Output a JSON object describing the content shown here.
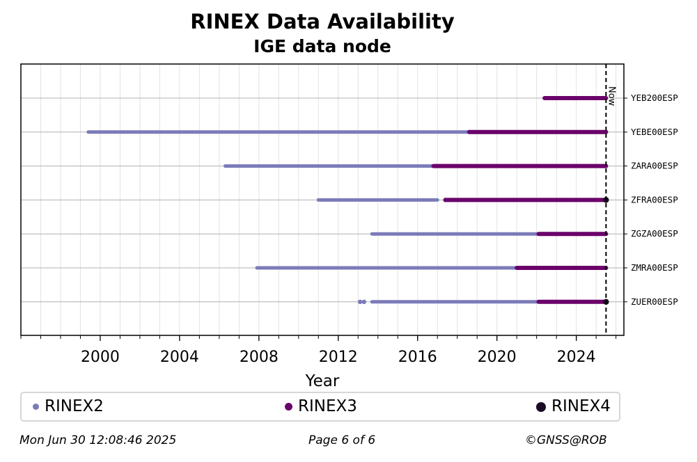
{
  "chart_data": {
    "type": "timeline",
    "title": "RINEX Data Availability",
    "subtitle": "IGE data node",
    "xlabel": "Year",
    "xlim": [
      1996.0,
      2026.4
    ],
    "xticks": [
      2000,
      2004,
      2008,
      2012,
      2016,
      2020,
      2024
    ],
    "now_label": "Now",
    "now_x": 2025.5,
    "grid": true,
    "legend_position": "bottom",
    "stations": [
      "YEB200ESP",
      "YEBE00ESP",
      "ZARA00ESP",
      "ZFRA00ESP",
      "ZGZA00ESP",
      "ZMRA00ESP",
      "ZUER00ESP"
    ],
    "series": [
      {
        "name": "RINEX2",
        "color": "#7b7bba",
        "segments": [
          {
            "station": "YEBE00ESP",
            "ranges": [
              [
                1999.4,
                2018.6
              ]
            ]
          },
          {
            "station": "ZARA00ESP",
            "ranges": [
              [
                2006.3,
                2016.8
              ]
            ]
          },
          {
            "station": "ZFRA00ESP",
            "ranges": [
              [
                2011.0,
                2017.0
              ],
              [
                2020.9,
                2021.0
              ]
            ],
            "points": [
              2017.4
            ]
          },
          {
            "station": "ZGZA00ESP",
            "ranges": [
              [
                2013.7,
                2022.1
              ]
            ]
          },
          {
            "station": "ZMRA00ESP",
            "ranges": [
              [
                2007.9,
                2021.0
              ]
            ]
          },
          {
            "station": "ZUER00ESP",
            "ranges": [
              [
                2013.7,
                2022.1
              ]
            ],
            "points": [
              2013.1,
              2013.3
            ]
          }
        ]
      },
      {
        "name": "RINEX3",
        "color": "#6a006a",
        "segments": [
          {
            "station": "YEB200ESP",
            "ranges": [
              [
                2022.4,
                2025.5
              ]
            ]
          },
          {
            "station": "YEBE00ESP",
            "ranges": [
              [
                2018.6,
                2025.5
              ]
            ]
          },
          {
            "station": "ZARA00ESP",
            "ranges": [
              [
                2016.8,
                2025.5
              ]
            ]
          },
          {
            "station": "ZFRA00ESP",
            "ranges": [
              [
                2017.4,
                2025.5
              ]
            ]
          },
          {
            "station": "ZGZA00ESP",
            "ranges": [
              [
                2022.1,
                2025.5
              ]
            ]
          },
          {
            "station": "ZMRA00ESP",
            "ranges": [
              [
                2021.0,
                2025.5
              ]
            ]
          },
          {
            "station": "ZUER00ESP",
            "ranges": [
              [
                2022.1,
                2025.5
              ]
            ]
          }
        ]
      },
      {
        "name": "RINEX4",
        "color": "#1d0a24",
        "segments": [
          {
            "station": "ZFRA00ESP",
            "points": [
              2025.5
            ]
          },
          {
            "station": "ZUER00ESP",
            "points": [
              2025.5
            ]
          }
        ]
      }
    ]
  },
  "footer": {
    "date": "Mon Jun 30 12:08:46 2025",
    "page": "Page 6 of 6",
    "copyright": "©GNSS@ROB"
  }
}
